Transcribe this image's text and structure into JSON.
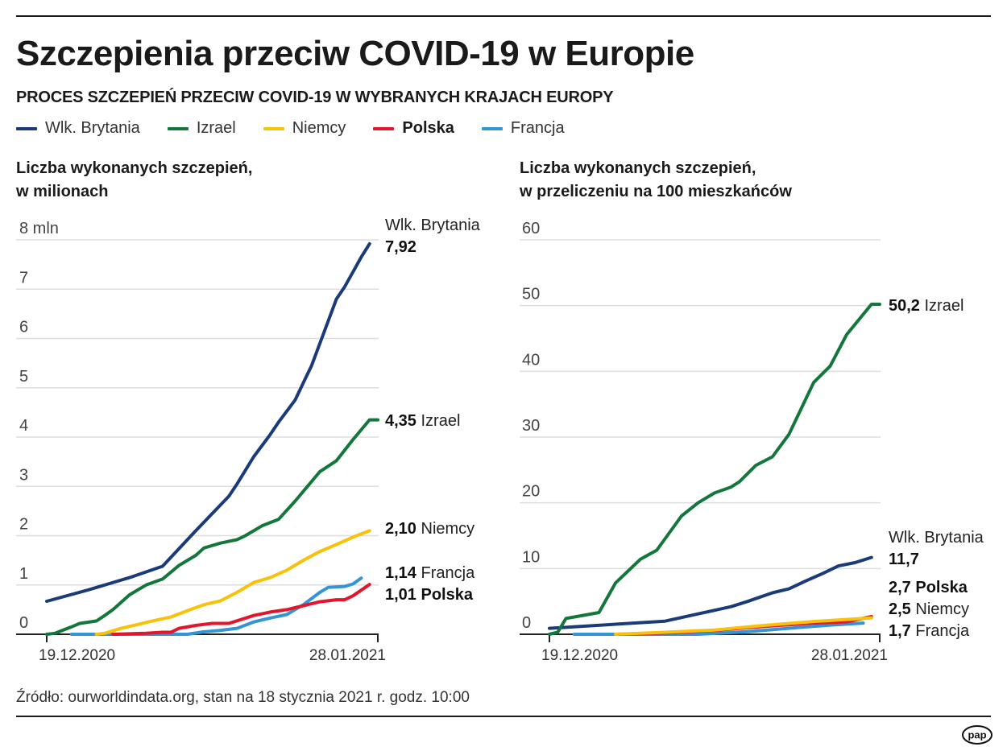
{
  "title": "Szczepienia przeciw COVID-19 w Europie",
  "subtitle": "PROCES SZCZEPIEŃ PRZECIW COVID-19 W WYBRANYCH KRAJACH EUROPY",
  "legend": [
    {
      "name": "Wlk. Brytania",
      "color": "#1b3a7a",
      "bold": false
    },
    {
      "name": "Izrael",
      "color": "#13763a",
      "bold": false
    },
    {
      "name": "Niemcy",
      "color": "#f8c10a",
      "bold": false
    },
    {
      "name": "Polska",
      "color": "#e3152b",
      "bold": true
    },
    {
      "name": "Francja",
      "color": "#3495d6",
      "bold": false
    }
  ],
  "source": "Źródło: ourworldindata.org, stan na 18 stycznia 2021 r. godz. 10:00",
  "logo": "pap",
  "chart_data": [
    {
      "type": "line",
      "title_line1": "Liczba wykonanych szczepień,",
      "title_line2": "w milionach",
      "x_range": [
        "19.12.2020",
        "28.01.2021"
      ],
      "x_ticks": [
        "19.12.2020",
        "28.01.2021"
      ],
      "ylim": [
        0,
        8
      ],
      "y_ticks": [
        "0",
        "1",
        "2",
        "3",
        "4",
        "5",
        "6",
        "7",
        "8 mln"
      ],
      "grid": true,
      "series": [
        {
          "name": "Wlk. Brytania",
          "color": "#1b3a7a",
          "points": [
            [
              "19.12.2020",
              0.67
            ],
            [
              "24.12.2020",
              0.9
            ],
            [
              "29.12.2020",
              1.15
            ],
            [
              "02.01.2021",
              1.38
            ],
            [
              "06.01.2021",
              2.1
            ],
            [
              "10.01.2021",
              2.8
            ],
            [
              "11.01.2021",
              3.05
            ],
            [
              "13.01.2021",
              3.6
            ],
            [
              "15.01.2021",
              4.05
            ],
            [
              "16.01.2021",
              4.3
            ],
            [
              "18.01.2021",
              4.75
            ],
            [
              "19.01.2021",
              5.1
            ],
            [
              "20.01.2021",
              5.45
            ],
            [
              "21.01.2021",
              5.9
            ],
            [
              "23.01.2021",
              6.8
            ],
            [
              "24.01.2021",
              7.05
            ],
            [
              "25.01.2021",
              7.35
            ],
            [
              "26.01.2021",
              7.65
            ],
            [
              "27.01.2021",
              7.92
            ]
          ]
        },
        {
          "name": "Izrael",
          "color": "#13763a",
          "points": [
            [
              "19.12.2020",
              0
            ],
            [
              "20.12.2020",
              0.02
            ],
            [
              "22.12.2020",
              0.15
            ],
            [
              "23.12.2020",
              0.22
            ],
            [
              "25.12.2020",
              0.27
            ],
            [
              "26.12.2020",
              0.38
            ],
            [
              "27.12.2020",
              0.5
            ],
            [
              "29.12.2020",
              0.8
            ],
            [
              "31.12.2020",
              1.0
            ],
            [
              "02.01.2021",
              1.12
            ],
            [
              "04.01.2021",
              1.4
            ],
            [
              "06.01.2021",
              1.6
            ],
            [
              "07.01.2021",
              1.75
            ],
            [
              "09.01.2021",
              1.85
            ],
            [
              "11.01.2021",
              1.92
            ],
            [
              "12.01.2021",
              2.0
            ],
            [
              "14.01.2021",
              2.2
            ],
            [
              "16.01.2021",
              2.33
            ],
            [
              "18.01.2021",
              2.7
            ],
            [
              "21.01.2021",
              3.3
            ],
            [
              "23.01.2021",
              3.52
            ],
            [
              "25.01.2021",
              3.95
            ],
            [
              "27.01.2021",
              4.35
            ],
            [
              "28.01.2021",
              4.35
            ]
          ]
        },
        {
          "name": "Niemcy",
          "color": "#f8c10a",
          "points": [
            [
              "25.12.2020",
              0
            ],
            [
              "26.12.2020",
              0.02
            ],
            [
              "28.12.2020",
              0.12
            ],
            [
              "30.12.2020",
              0.2
            ],
            [
              "01.01.2021",
              0.28
            ],
            [
              "03.01.2021",
              0.35
            ],
            [
              "05.01.2021",
              0.48
            ],
            [
              "07.01.2021",
              0.6
            ],
            [
              "09.01.2021",
              0.68
            ],
            [
              "11.01.2021",
              0.85
            ],
            [
              "13.01.2021",
              1.05
            ],
            [
              "15.01.2021",
              1.15
            ],
            [
              "17.01.2021",
              1.3
            ],
            [
              "19.01.2021",
              1.5
            ],
            [
              "21.01.2021",
              1.68
            ],
            [
              "23.01.2021",
              1.82
            ],
            [
              "25.01.2021",
              1.97
            ],
            [
              "27.01.2021",
              2.1
            ]
          ]
        },
        {
          "name": "Polska",
          "color": "#e3152b",
          "points": [
            [
              "27.12.2020",
              0
            ],
            [
              "31.12.2020",
              0.02
            ],
            [
              "02.01.2021",
              0.04
            ],
            [
              "03.01.2021",
              0.04
            ],
            [
              "04.01.2021",
              0.12
            ],
            [
              "06.01.2021",
              0.18
            ],
            [
              "08.01.2021",
              0.22
            ],
            [
              "10.01.2021",
              0.22
            ],
            [
              "13.01.2021",
              0.38
            ],
            [
              "15.01.2021",
              0.45
            ],
            [
              "17.01.2021",
              0.5
            ],
            [
              "19.01.2021",
              0.58
            ],
            [
              "21.01.2021",
              0.66
            ],
            [
              "23.01.2021",
              0.7
            ],
            [
              "24.01.2021",
              0.7
            ],
            [
              "25.01.2021",
              0.78
            ],
            [
              "27.01.2021",
              1.01
            ]
          ]
        },
        {
          "name": "Francja",
          "color": "#3495d6",
          "points": [
            [
              "22.12.2020",
              0
            ],
            [
              "05.01.2021",
              0
            ],
            [
              "07.01.2021",
              0.05
            ],
            [
              "09.01.2021",
              0.08
            ],
            [
              "11.01.2021",
              0.12
            ],
            [
              "13.01.2021",
              0.25
            ],
            [
              "15.01.2021",
              0.33
            ],
            [
              "17.01.2021",
              0.4
            ],
            [
              "19.01.2021",
              0.6
            ],
            [
              "21.01.2021",
              0.85
            ],
            [
              "22.01.2021",
              0.95
            ],
            [
              "24.01.2021",
              0.97
            ],
            [
              "25.01.2021",
              1.02
            ],
            [
              "26.01.2021",
              1.14
            ]
          ]
        }
      ],
      "end_labels": [
        {
          "name": "Wlk. Brytania",
          "value": "7,92"
        },
        {
          "name": "Izrael",
          "value": "4,35"
        },
        {
          "name": "Niemcy",
          "value": "2,10"
        },
        {
          "name": "Francja",
          "value": "1,14"
        },
        {
          "name": "Polska",
          "value": "1,01"
        }
      ]
    },
    {
      "type": "line",
      "title_line1": "Liczba wykonanych szczepień,",
      "title_line2": "w przeliczeniu na 100 mieszkańców",
      "x_range": [
        "19.12.2020",
        "28.01.2021"
      ],
      "x_ticks": [
        "19.12.2020",
        "28.01.2021"
      ],
      "ylim": [
        0,
        60
      ],
      "y_ticks": [
        "0",
        "10",
        "20",
        "30",
        "40",
        "50",
        "60"
      ],
      "grid": true,
      "series": [
        {
          "name": "Izrael",
          "color": "#13763a",
          "points": [
            [
              "19.12.2020",
              0
            ],
            [
              "20.12.2020",
              0.3
            ],
            [
              "21.12.2020",
              2.4
            ],
            [
              "25.12.2020",
              3.3
            ],
            [
              "27.12.2020",
              7.8
            ],
            [
              "30.12.2020",
              11.4
            ],
            [
              "01.01.2021",
              12.8
            ],
            [
              "04.01.2021",
              18
            ],
            [
              "06.01.2021",
              20
            ],
            [
              "08.01.2021",
              21.5
            ],
            [
              "10.01.2021",
              22.4
            ],
            [
              "11.01.2021",
              23.2
            ],
            [
              "13.01.2021",
              25.7
            ],
            [
              "15.01.2021",
              27
            ],
            [
              "17.01.2021",
              30.4
            ],
            [
              "20.01.2021",
              38.3
            ],
            [
              "22.01.2021",
              40.8
            ],
            [
              "24.01.2021",
              45.6
            ],
            [
              "27.01.2021",
              50.2
            ],
            [
              "28.01.2021",
              50.2
            ]
          ]
        },
        {
          "name": "Wlk. Brytania",
          "color": "#1b3a7a",
          "points": [
            [
              "19.12.2020",
              0.9
            ],
            [
              "02.01.2021",
              2.0
            ],
            [
              "06.01.2021",
              3.1
            ],
            [
              "10.01.2021",
              4.2
            ],
            [
              "12.01.2021",
              5.0
            ],
            [
              "15.01.2021",
              6.3
            ],
            [
              "17.01.2021",
              6.9
            ],
            [
              "19.01.2021",
              8.1
            ],
            [
              "21.01.2021",
              9.2
            ],
            [
              "23.01.2021",
              10.4
            ],
            [
              "25.01.2021",
              10.9
            ],
            [
              "27.01.2021",
              11.7
            ]
          ]
        },
        {
          "name": "Niemcy",
          "color": "#f8c10a",
          "points": [
            [
              "27.12.2020",
              0
            ],
            [
              "02.01.2021",
              0.3
            ],
            [
              "08.01.2021",
              0.65
            ],
            [
              "14.01.2021",
              1.35
            ],
            [
              "20.01.2021",
              1.95
            ],
            [
              "24.01.2021",
              2.25
            ],
            [
              "27.01.2021",
              2.5
            ]
          ]
        },
        {
          "name": "Polska",
          "color": "#e3152b",
          "points": [
            [
              "27.12.2020",
              0
            ],
            [
              "02.01.2021",
              0.2
            ],
            [
              "08.01.2021",
              0.6
            ],
            [
              "14.01.2021",
              1.2
            ],
            [
              "20.01.2021",
              1.7
            ],
            [
              "24.01.2021",
              1.9
            ],
            [
              "27.01.2021",
              2.7
            ]
          ]
        },
        {
          "name": "Francja",
          "color": "#3495d6",
          "points": [
            [
              "22.12.2020",
              0
            ],
            [
              "06.01.2021",
              0
            ],
            [
              "12.01.2021",
              0.4
            ],
            [
              "18.01.2021",
              1.0
            ],
            [
              "22.01.2021",
              1.4
            ],
            [
              "26.01.2021",
              1.7
            ]
          ]
        }
      ],
      "end_labels": [
        {
          "name": "Izrael",
          "value": "50,2"
        },
        {
          "name": "Wlk. Brytania",
          "value": "11,7"
        },
        {
          "name": "Polska",
          "value": "2,7"
        },
        {
          "name": "Niemcy",
          "value": "2,5"
        },
        {
          "name": "Francja",
          "value": "1,7"
        }
      ]
    }
  ]
}
